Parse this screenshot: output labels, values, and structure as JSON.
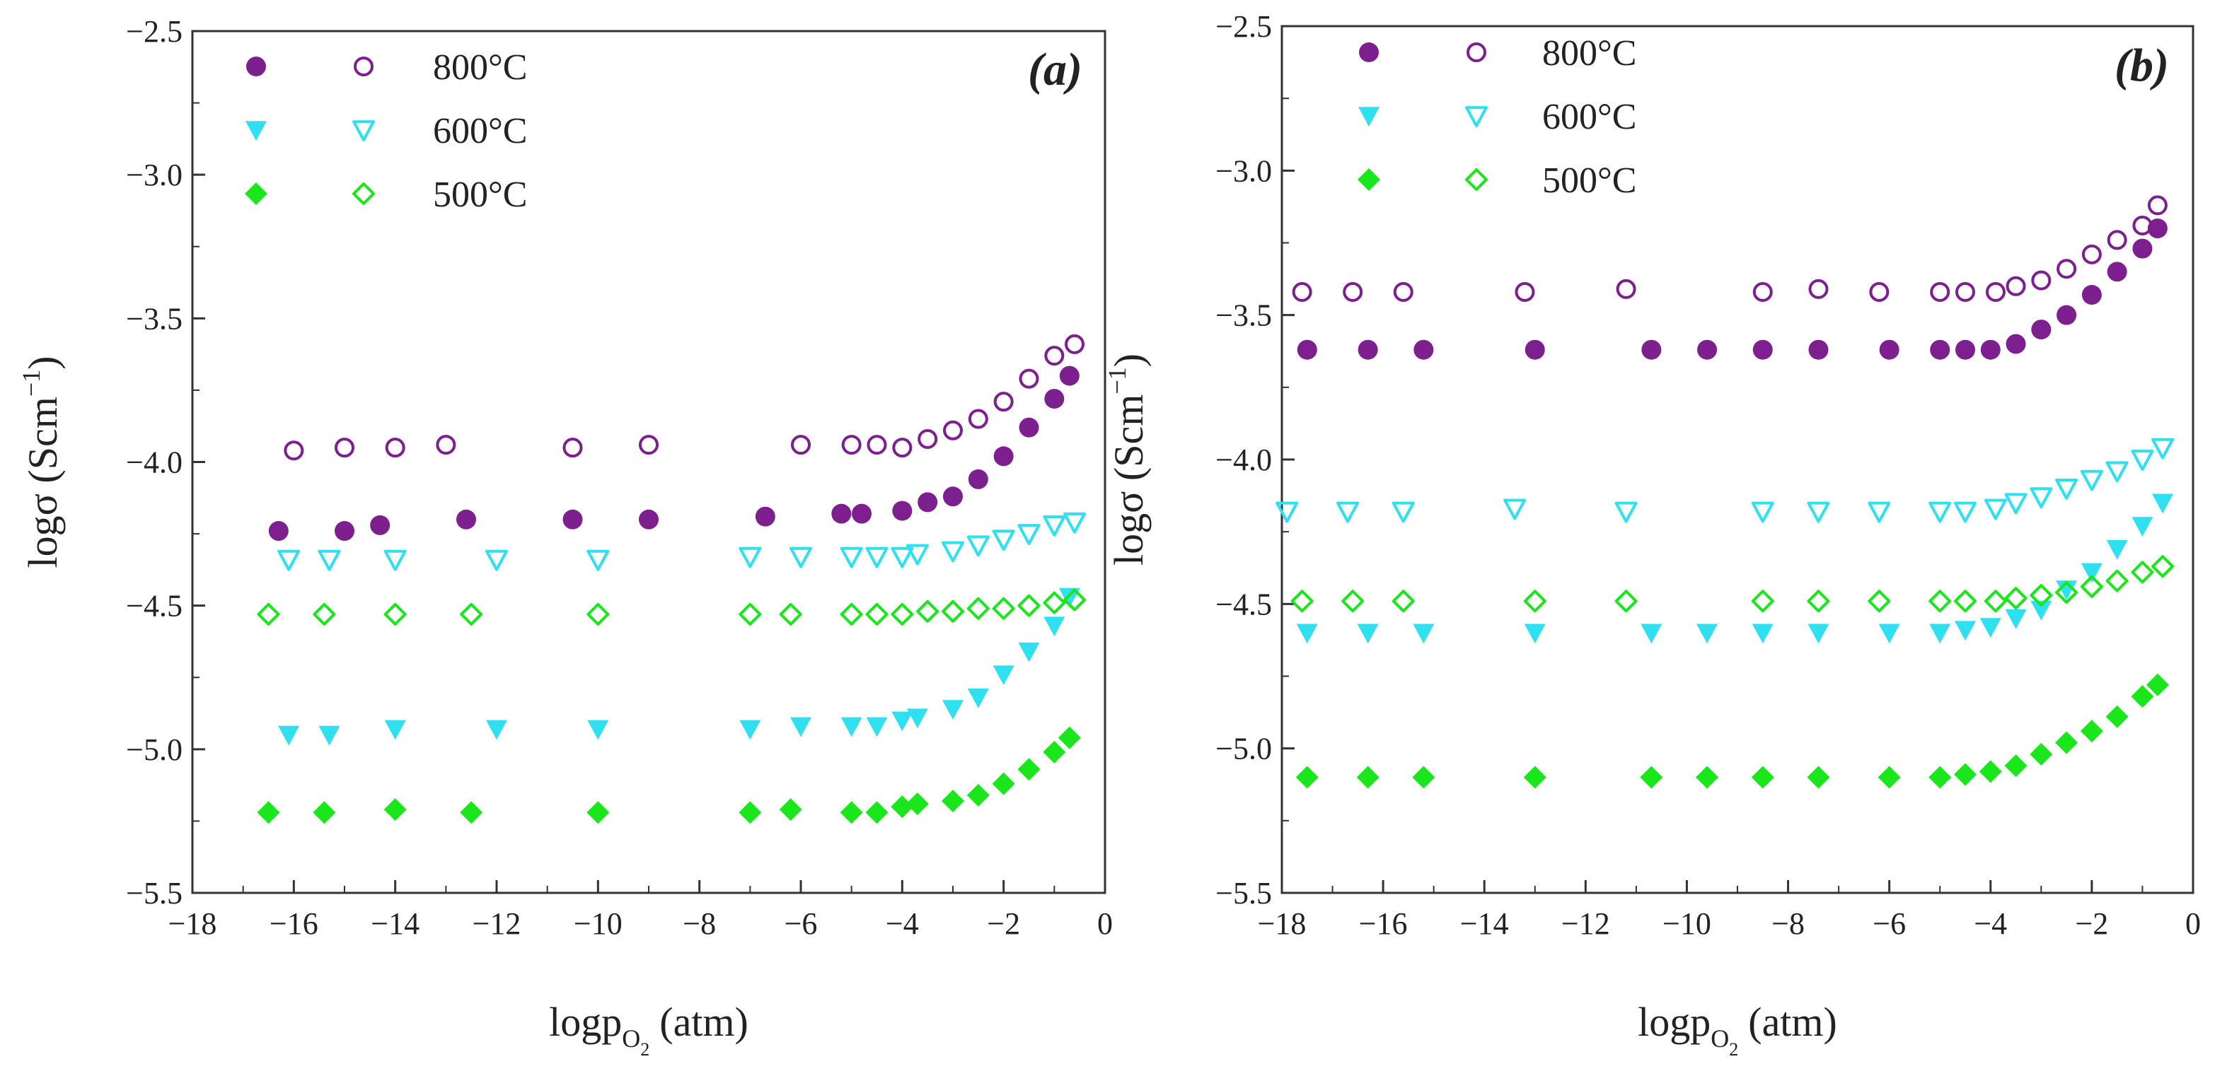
{
  "chart_data": [
    {
      "type": "scatter",
      "panel_label": "(a)",
      "xlabel_main": "logp",
      "xlabel_sub": "O",
      "xlabel_subsub": "2",
      "xlabel_unit": "(atm)",
      "ylabel_main": "logσ (Scm",
      "ylabel_sup": "−1",
      "ylabel_close": ")",
      "xlim": [
        -18,
        0
      ],
      "ylim": [
        -5.5,
        -2.5
      ],
      "xticks": [
        -18,
        -16,
        -14,
        -12,
        -10,
        -8,
        -6,
        -4,
        -2,
        0
      ],
      "yticks": [
        -5.5,
        -5.0,
        -4.5,
        -4.0,
        -3.5,
        -3.0,
        -2.5
      ],
      "xtick_labels": [
        "−18",
        "−16",
        "−14",
        "−12",
        "−10",
        "−8",
        "−6",
        "−4",
        "−2",
        "0"
      ],
      "ytick_labels": [
        "−5.5",
        "−5.0",
        "−4.5",
        "−4.0",
        "−3.5",
        "−3.0",
        "−2.5"
      ],
      "legend": [
        {
          "label": "800°C",
          "color": "#7d1f8f",
          "marker": "circle"
        },
        {
          "label": "600°C",
          "color": "#2ee0f0",
          "marker": "triangle-down"
        },
        {
          "label": "500°C",
          "color": "#19e61b",
          "marker": "diamond"
        }
      ],
      "series": [
        {
          "name": "800°C filled",
          "color": "#7d1f8f",
          "marker": "circle",
          "filled": true,
          "points": [
            [
              -16.3,
              -4.24
            ],
            [
              -15,
              -4.24
            ],
            [
              -14.3,
              -4.22
            ],
            [
              -12.6,
              -4.2
            ],
            [
              -10.5,
              -4.2
            ],
            [
              -9,
              -4.2
            ],
            [
              -6.7,
              -4.19
            ],
            [
              -5.2,
              -4.18
            ],
            [
              -4.8,
              -4.18
            ],
            [
              -4,
              -4.17
            ],
            [
              -3.5,
              -4.14
            ],
            [
              -3,
              -4.12
            ],
            [
              -2.5,
              -4.06
            ],
            [
              -2,
              -3.98
            ],
            [
              -1.5,
              -3.88
            ],
            [
              -1,
              -3.78
            ],
            [
              -0.7,
              -3.7
            ]
          ]
        },
        {
          "name": "800°C open",
          "color": "#7d1f8f",
          "marker": "circle",
          "filled": false,
          "points": [
            [
              -16,
              -3.96
            ],
            [
              -15,
              -3.95
            ],
            [
              -14,
              -3.95
            ],
            [
              -13,
              -3.94
            ],
            [
              -10.5,
              -3.95
            ],
            [
              -9,
              -3.94
            ],
            [
              -6,
              -3.94
            ],
            [
              -5,
              -3.94
            ],
            [
              -4.5,
              -3.94
            ],
            [
              -4,
              -3.95
            ],
            [
              -3.5,
              -3.92
            ],
            [
              -3,
              -3.89
            ],
            [
              -2.5,
              -3.85
            ],
            [
              -2,
              -3.79
            ],
            [
              -1.5,
              -3.71
            ],
            [
              -1,
              -3.63
            ],
            [
              -0.6,
              -3.59
            ]
          ]
        },
        {
          "name": "600°C filled",
          "color": "#2ee0f0",
          "marker": "triangle-down",
          "filled": true,
          "points": [
            [
              -16.1,
              -4.95
            ],
            [
              -15.3,
              -4.95
            ],
            [
              -14,
              -4.93
            ],
            [
              -12,
              -4.93
            ],
            [
              -10,
              -4.93
            ],
            [
              -7,
              -4.93
            ],
            [
              -6,
              -4.92
            ],
            [
              -5,
              -4.92
            ],
            [
              -4.5,
              -4.92
            ],
            [
              -4,
              -4.9
            ],
            [
              -3.7,
              -4.89
            ],
            [
              -3,
              -4.86
            ],
            [
              -2.5,
              -4.82
            ],
            [
              -2,
              -4.74
            ],
            [
              -1.5,
              -4.66
            ],
            [
              -1,
              -4.57
            ],
            [
              -0.7,
              -4.47
            ]
          ]
        },
        {
          "name": "600°C open",
          "color": "#2ee0f0",
          "marker": "triangle-down",
          "filled": false,
          "points": [
            [
              -16.1,
              -4.34
            ],
            [
              -15.3,
              -4.34
            ],
            [
              -14,
              -4.34
            ],
            [
              -12,
              -4.34
            ],
            [
              -10,
              -4.34
            ],
            [
              -7,
              -4.33
            ],
            [
              -6,
              -4.33
            ],
            [
              -5,
              -4.33
            ],
            [
              -4.5,
              -4.33
            ],
            [
              -4,
              -4.33
            ],
            [
              -3.7,
              -4.32
            ],
            [
              -3,
              -4.31
            ],
            [
              -2.5,
              -4.29
            ],
            [
              -2,
              -4.27
            ],
            [
              -1.5,
              -4.25
            ],
            [
              -1,
              -4.22
            ],
            [
              -0.6,
              -4.21
            ]
          ]
        },
        {
          "name": "500°C filled",
          "color": "#19e61b",
          "marker": "diamond",
          "filled": true,
          "points": [
            [
              -16.5,
              -5.22
            ],
            [
              -15.4,
              -5.22
            ],
            [
              -14,
              -5.21
            ],
            [
              -12.5,
              -5.22
            ],
            [
              -10,
              -5.22
            ],
            [
              -7,
              -5.22
            ],
            [
              -6.2,
              -5.21
            ],
            [
              -5,
              -5.22
            ],
            [
              -4.5,
              -5.22
            ],
            [
              -4,
              -5.2
            ],
            [
              -3.7,
              -5.19
            ],
            [
              -3,
              -5.18
            ],
            [
              -2.5,
              -5.16
            ],
            [
              -2,
              -5.12
            ],
            [
              -1.5,
              -5.07
            ],
            [
              -1,
              -5.01
            ],
            [
              -0.7,
              -4.96
            ]
          ]
        },
        {
          "name": "500°C open",
          "color": "#19e61b",
          "marker": "diamond",
          "filled": false,
          "points": [
            [
              -16.5,
              -4.53
            ],
            [
              -15.4,
              -4.53
            ],
            [
              -14,
              -4.53
            ],
            [
              -12.5,
              -4.53
            ],
            [
              -10,
              -4.53
            ],
            [
              -7,
              -4.53
            ],
            [
              -6.2,
              -4.53
            ],
            [
              -5,
              -4.53
            ],
            [
              -4.5,
              -4.53
            ],
            [
              -4,
              -4.53
            ],
            [
              -3.5,
              -4.52
            ],
            [
              -3,
              -4.52
            ],
            [
              -2.5,
              -4.51
            ],
            [
              -2,
              -4.51
            ],
            [
              -1.5,
              -4.5
            ],
            [
              -1,
              -4.49
            ],
            [
              -0.6,
              -4.48
            ]
          ]
        }
      ]
    },
    {
      "type": "scatter",
      "panel_label": "(b)",
      "xlabel_main": "logp",
      "xlabel_sub": "O",
      "xlabel_subsub": "2",
      "xlabel_unit": "(atm)",
      "ylabel_main": "logσ (Scm",
      "ylabel_sup": "−1",
      "ylabel_close": ")",
      "xlim": [
        -18,
        0
      ],
      "ylim": [
        -5.5,
        -2.5
      ],
      "xticks": [
        -18,
        -16,
        -14,
        -12,
        -10,
        -8,
        -6,
        -4,
        -2,
        0
      ],
      "yticks": [
        -5.5,
        -5.0,
        -4.5,
        -4.0,
        -3.5,
        -3.0,
        -2.5
      ],
      "xtick_labels": [
        "−18",
        "−16",
        "−14",
        "−12",
        "−10",
        "−8",
        "−6",
        "−4",
        "−2",
        "0"
      ],
      "ytick_labels": [
        "−5.5",
        "−5.0",
        "−4.5",
        "−4.0",
        "−3.5",
        "−3.0",
        "−2.5"
      ],
      "legend": [
        {
          "label": "800°C",
          "color": "#7d1f8f",
          "marker": "circle"
        },
        {
          "label": "600°C",
          "color": "#2ee0f0",
          "marker": "triangle-down"
        },
        {
          "label": "500°C",
          "color": "#19e61b",
          "marker": "diamond"
        }
      ],
      "series": [
        {
          "name": "800°C filled",
          "color": "#7d1f8f",
          "marker": "circle",
          "filled": true,
          "points": [
            [
              -17.5,
              -3.62
            ],
            [
              -16.3,
              -3.62
            ],
            [
              -15.2,
              -3.62
            ],
            [
              -13,
              -3.62
            ],
            [
              -10.7,
              -3.62
            ],
            [
              -9.6,
              -3.62
            ],
            [
              -8.5,
              -3.62
            ],
            [
              -7.4,
              -3.62
            ],
            [
              -6,
              -3.62
            ],
            [
              -5,
              -3.62
            ],
            [
              -4.5,
              -3.62
            ],
            [
              -4,
              -3.62
            ],
            [
              -3.5,
              -3.6
            ],
            [
              -3,
              -3.55
            ],
            [
              -2.5,
              -3.5
            ],
            [
              -2,
              -3.43
            ],
            [
              -1.5,
              -3.35
            ],
            [
              -1,
              -3.27
            ],
            [
              -0.7,
              -3.2
            ]
          ]
        },
        {
          "name": "800°C open",
          "color": "#7d1f8f",
          "marker": "circle",
          "filled": false,
          "points": [
            [
              -17.6,
              -3.42
            ],
            [
              -16.6,
              -3.42
            ],
            [
              -15.6,
              -3.42
            ],
            [
              -13.2,
              -3.42
            ],
            [
              -11.2,
              -3.41
            ],
            [
              -8.5,
              -3.42
            ],
            [
              -7.4,
              -3.41
            ],
            [
              -6.2,
              -3.42
            ],
            [
              -5,
              -3.42
            ],
            [
              -4.5,
              -3.42
            ],
            [
              -3.9,
              -3.42
            ],
            [
              -3.5,
              -3.4
            ],
            [
              -3,
              -3.38
            ],
            [
              -2.5,
              -3.34
            ],
            [
              -2,
              -3.29
            ],
            [
              -1.5,
              -3.24
            ],
            [
              -1,
              -3.19
            ],
            [
              -0.7,
              -3.12
            ]
          ]
        },
        {
          "name": "600°C filled",
          "color": "#2ee0f0",
          "marker": "triangle-down",
          "filled": true,
          "points": [
            [
              -17.5,
              -4.6
            ],
            [
              -16.3,
              -4.6
            ],
            [
              -15.2,
              -4.6
            ],
            [
              -13,
              -4.6
            ],
            [
              -10.7,
              -4.6
            ],
            [
              -9.6,
              -4.6
            ],
            [
              -8.5,
              -4.6
            ],
            [
              -7.4,
              -4.6
            ],
            [
              -6,
              -4.6
            ],
            [
              -5,
              -4.6
            ],
            [
              -4.5,
              -4.59
            ],
            [
              -4,
              -4.58
            ],
            [
              -3.5,
              -4.55
            ],
            [
              -3,
              -4.52
            ],
            [
              -2.5,
              -4.45
            ],
            [
              -2,
              -4.39
            ],
            [
              -1.5,
              -4.31
            ],
            [
              -1,
              -4.23
            ],
            [
              -0.6,
              -4.15
            ]
          ]
        },
        {
          "name": "600°C open",
          "color": "#2ee0f0",
          "marker": "triangle-down",
          "filled": false,
          "points": [
            [
              -17.9,
              -4.18
            ],
            [
              -16.7,
              -4.18
            ],
            [
              -15.6,
              -4.18
            ],
            [
              -13.4,
              -4.17
            ],
            [
              -11.2,
              -4.18
            ],
            [
              -8.5,
              -4.18
            ],
            [
              -7.4,
              -4.18
            ],
            [
              -6.2,
              -4.18
            ],
            [
              -5,
              -4.18
            ],
            [
              -4.5,
              -4.18
            ],
            [
              -3.9,
              -4.17
            ],
            [
              -3.5,
              -4.15
            ],
            [
              -3,
              -4.13
            ],
            [
              -2.5,
              -4.1
            ],
            [
              -2,
              -4.07
            ],
            [
              -1.5,
              -4.04
            ],
            [
              -1,
              -4
            ],
            [
              -0.6,
              -3.96
            ]
          ]
        },
        {
          "name": "500°C filled",
          "color": "#19e61b",
          "marker": "diamond",
          "filled": true,
          "points": [
            [
              -17.5,
              -5.1
            ],
            [
              -16.3,
              -5.1
            ],
            [
              -15.2,
              -5.1
            ],
            [
              -13,
              -5.1
            ],
            [
              -10.7,
              -5.1
            ],
            [
              -9.6,
              -5.1
            ],
            [
              -8.5,
              -5.1
            ],
            [
              -7.4,
              -5.1
            ],
            [
              -6,
              -5.1
            ],
            [
              -5,
              -5.1
            ],
            [
              -4.5,
              -5.09
            ],
            [
              -4,
              -5.08
            ],
            [
              -3.5,
              -5.06
            ],
            [
              -3,
              -5.02
            ],
            [
              -2.5,
              -4.98
            ],
            [
              -2,
              -4.94
            ],
            [
              -1.5,
              -4.89
            ],
            [
              -1,
              -4.82
            ],
            [
              -0.7,
              -4.78
            ]
          ]
        },
        {
          "name": "500°C open",
          "color": "#19e61b",
          "marker": "diamond",
          "filled": false,
          "points": [
            [
              -17.6,
              -4.49
            ],
            [
              -16.6,
              -4.49
            ],
            [
              -15.6,
              -4.49
            ],
            [
              -13,
              -4.49
            ],
            [
              -11.2,
              -4.49
            ],
            [
              -8.5,
              -4.49
            ],
            [
              -7.4,
              -4.49
            ],
            [
              -6.2,
              -4.49
            ],
            [
              -5,
              -4.49
            ],
            [
              -4.5,
              -4.49
            ],
            [
              -3.9,
              -4.49
            ],
            [
              -3.5,
              -4.48
            ],
            [
              -3,
              -4.47
            ],
            [
              -2.5,
              -4.46
            ],
            [
              -2,
              -4.44
            ],
            [
              -1.5,
              -4.42
            ],
            [
              -1,
              -4.39
            ],
            [
              -0.6,
              -4.37
            ]
          ]
        }
      ]
    }
  ]
}
